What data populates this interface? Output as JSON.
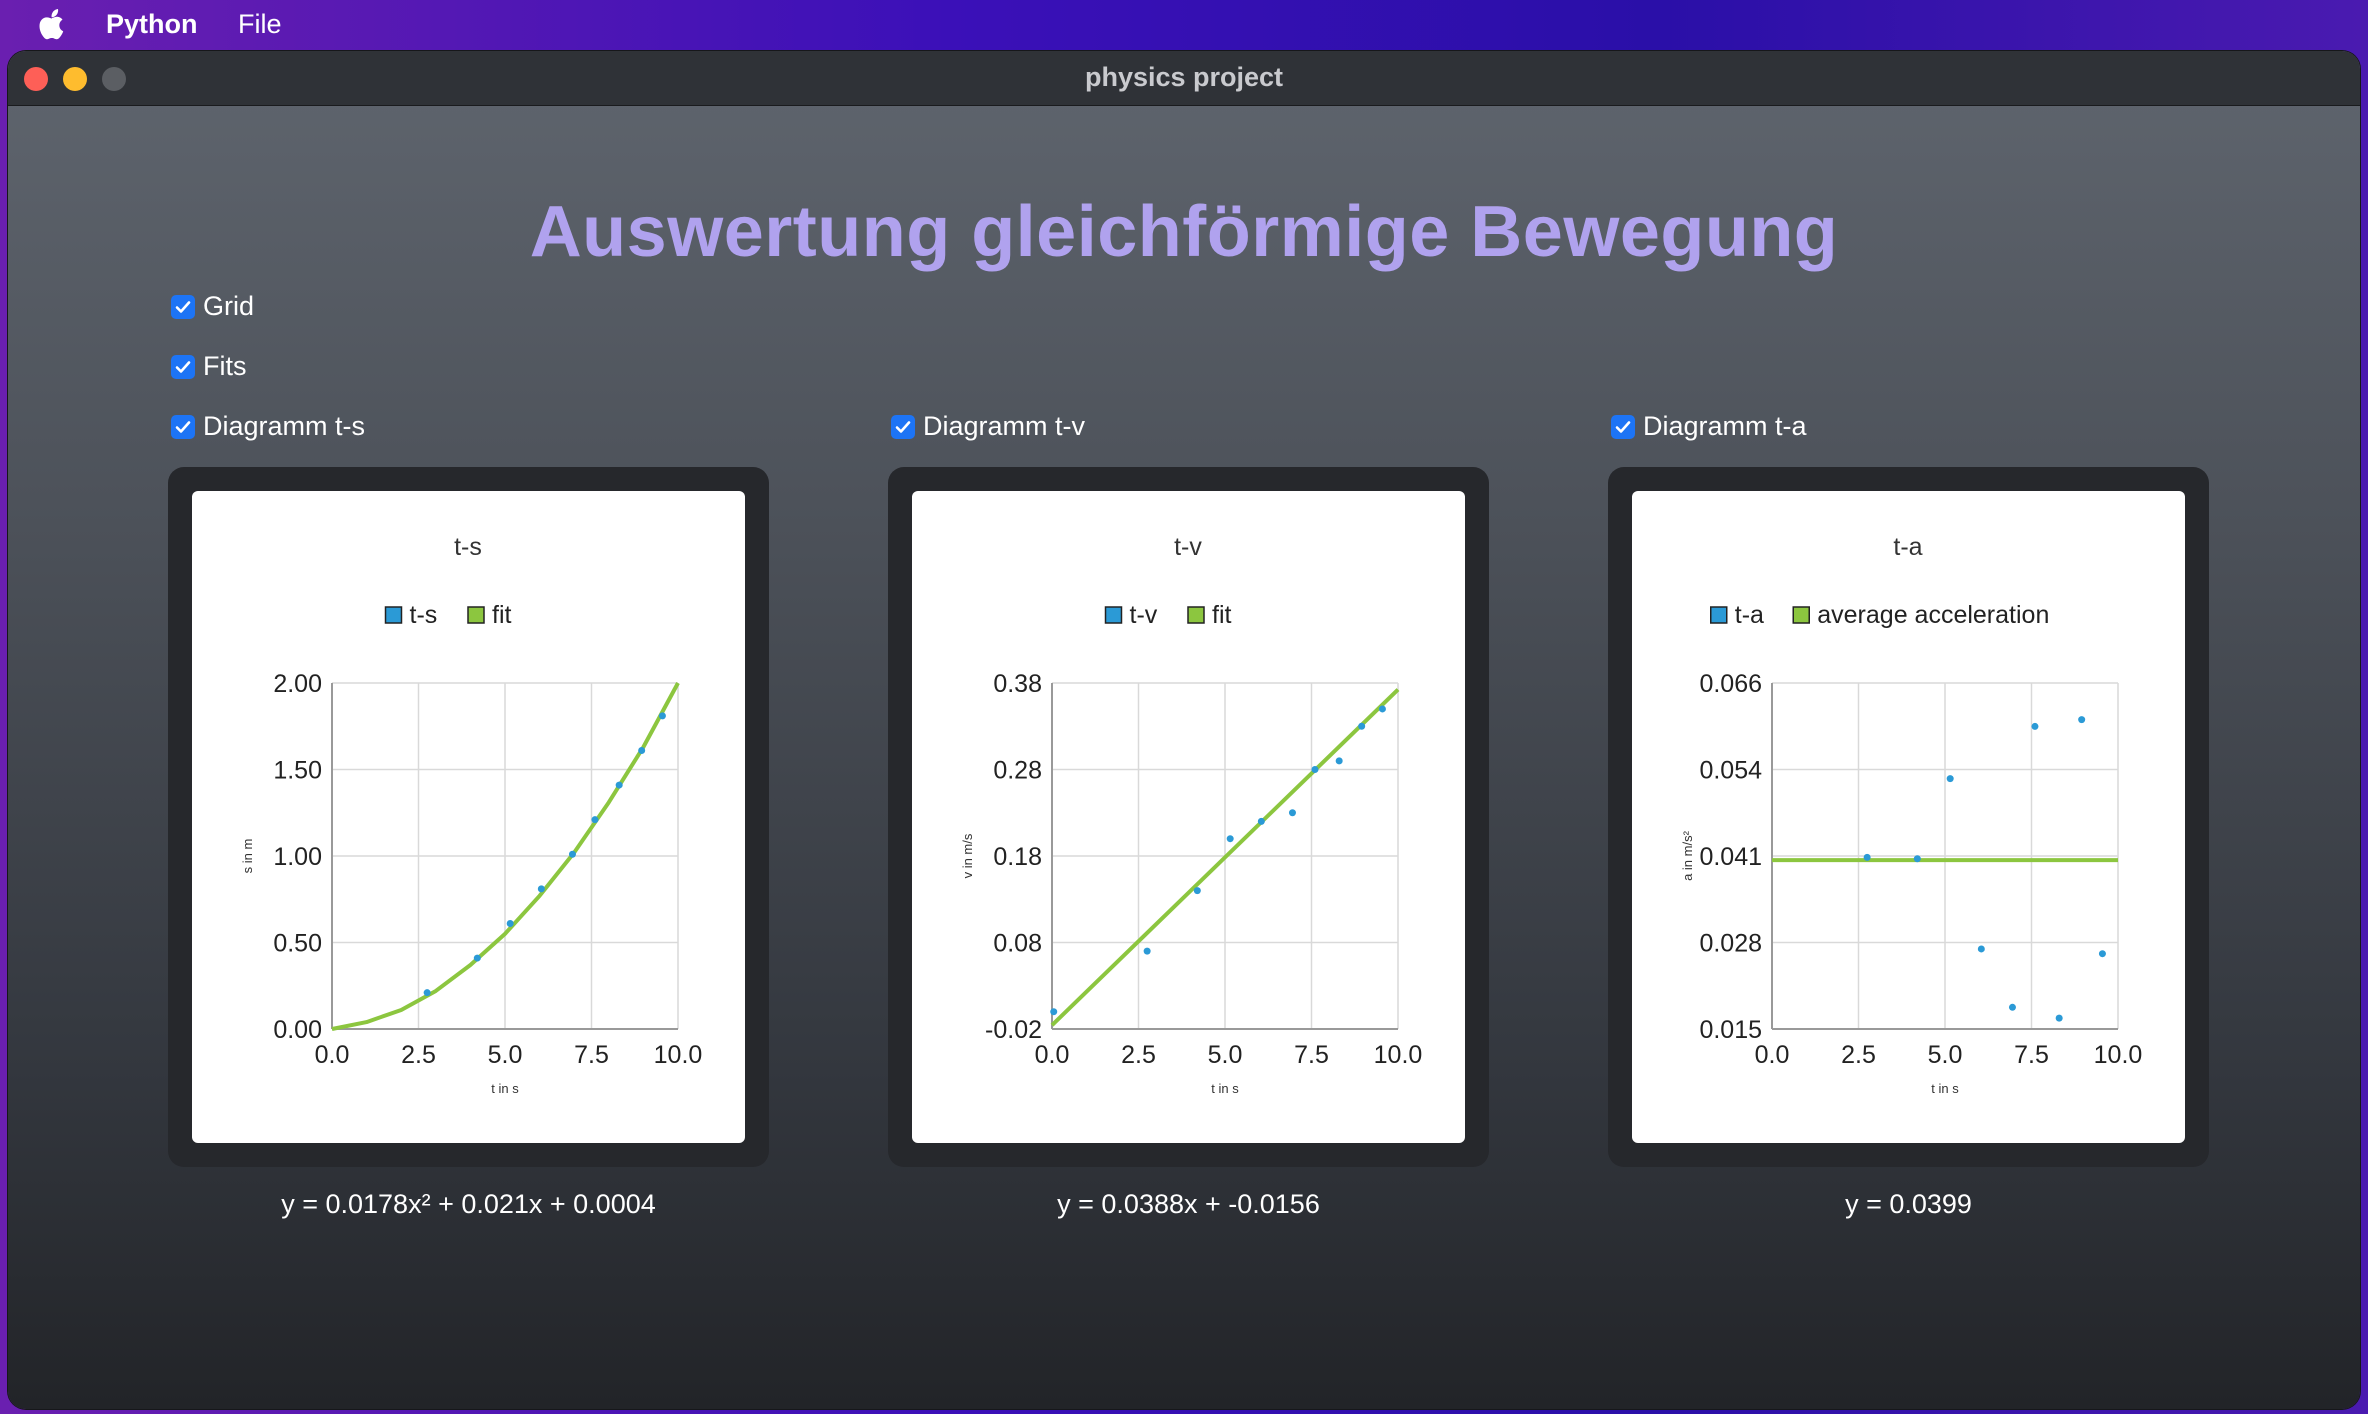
{
  "menubar": {
    "app": "Python",
    "items": [
      "File"
    ]
  },
  "window": {
    "title": "physics project"
  },
  "page_title": "Auswertung gleichförmige Bewegung",
  "checkboxes": {
    "grid": {
      "label": "Grid",
      "checked": true
    },
    "fits": {
      "label": "Fits",
      "checked": true
    },
    "ts": {
      "label": "Diagramm t-s",
      "checked": true
    },
    "tv": {
      "label": "Diagramm t-v",
      "checked": true
    },
    "ta": {
      "label": "Diagramm t-a",
      "checked": true
    }
  },
  "formulas": {
    "ts": "y = 0.0178x² + 0.021x + 0.0004",
    "tv": "y = 0.0388x + -0.0156",
    "ta": "y = 0.0399"
  },
  "colors": {
    "point": "#2b9ad6",
    "fit": "#8cc63f",
    "accent": "#1d74f5",
    "title": "#b0a2ee"
  },
  "chart_data": [
    {
      "type": "scatter",
      "title": "t-s",
      "xlabel": "t in s",
      "ylabel": "s in m",
      "xlim": [
        0,
        10
      ],
      "ylim": [
        0,
        2
      ],
      "xticks": [
        "0.0",
        "2.5",
        "5.0",
        "7.5",
        "10.0"
      ],
      "yticks": [
        "0.00",
        "0.50",
        "1.00",
        "1.50",
        "2.00"
      ],
      "grid": true,
      "legend": "top-center",
      "series": [
        {
          "name": "t-s",
          "kind": "points",
          "x": [
            2.75,
            4.2,
            5.15,
            6.05,
            6.95,
            7.6,
            8.3,
            8.95,
            9.55
          ],
          "y": [
            0.21,
            0.41,
            0.61,
            0.81,
            1.01,
            1.21,
            1.41,
            1.61,
            1.81
          ]
        },
        {
          "name": "fit",
          "kind": "line",
          "x": [
            0,
            1,
            2,
            3,
            4,
            5,
            6,
            7,
            8,
            9,
            10
          ],
          "y": [
            0.0,
            0.04,
            0.11,
            0.22,
            0.37,
            0.55,
            0.77,
            1.02,
            1.31,
            1.63,
            2.0
          ]
        }
      ]
    },
    {
      "type": "scatter",
      "title": "t-v",
      "xlabel": "t in s",
      "ylabel": "v in m/s",
      "xlim": [
        0,
        10
      ],
      "ylim": [
        -0.02,
        0.38
      ],
      "xticks": [
        "0.0",
        "2.5",
        "5.0",
        "7.5",
        "10.0"
      ],
      "yticks": [
        "-0.02",
        "0.08",
        "0.18",
        "0.28",
        "0.38"
      ],
      "grid": true,
      "legend": "top-center",
      "series": [
        {
          "name": "t-v",
          "kind": "points",
          "x": [
            0.05,
            2.75,
            4.2,
            5.15,
            6.05,
            6.95,
            7.6,
            8.3,
            8.95,
            9.55
          ],
          "y": [
            0.0,
            0.07,
            0.14,
            0.2,
            0.22,
            0.23,
            0.28,
            0.29,
            0.33,
            0.35
          ]
        },
        {
          "name": "fit",
          "kind": "line",
          "x": [
            0,
            10
          ],
          "y": [
            -0.0156,
            0.3724
          ]
        }
      ]
    },
    {
      "type": "scatter",
      "title": "t-a",
      "xlabel": "t in s",
      "ylabel": "a in m/s²",
      "xlim": [
        0,
        10
      ],
      "ylim": [
        0.015,
        0.066
      ],
      "xticks": [
        "0.0",
        "2.5",
        "5.0",
        "7.5",
        "10.0"
      ],
      "yticks": [
        "0.015",
        "0.028",
        "0.041",
        "0.054",
        "0.066"
      ],
      "grid": true,
      "legend": "top-center",
      "series": [
        {
          "name": "t-a",
          "kind": "points",
          "x": [
            2.75,
            4.2,
            5.15,
            6.05,
            6.95,
            7.6,
            8.3,
            8.95,
            9.55
          ],
          "y": [
            0.0403,
            0.0401,
            0.0519,
            0.0268,
            0.0182,
            0.0596,
            0.0166,
            0.0606,
            0.0261
          ]
        },
        {
          "name": "average acceleration",
          "kind": "line",
          "x": [
            0,
            10
          ],
          "y": [
            0.0399,
            0.0399
          ]
        }
      ]
    }
  ]
}
